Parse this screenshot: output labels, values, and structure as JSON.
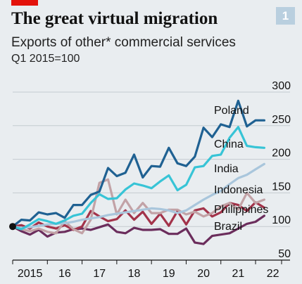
{
  "header": {
    "title": "The great virtual migration",
    "subtitle": "Exports of other* commercial services",
    "units": "Q1 2015=100",
    "chart_number": "1",
    "accent_color": "#e3120b"
  },
  "chart_data": {
    "type": "line",
    "title": "The great virtual migration",
    "subtitle": "Exports of other* commercial services",
    "ylabel": "Q1 2015=100",
    "ylim": [
      50,
      300
    ],
    "yticks": [
      50,
      100,
      150,
      200,
      250,
      300
    ],
    "xlim": [
      2015,
      2022.75
    ],
    "xticks": [
      "2015",
      "16",
      "17",
      "18",
      "19",
      "20",
      "21",
      "22"
    ],
    "grid": true,
    "legend": "labels at line ends, right",
    "base_marker": {
      "x": 2015,
      "y": 100
    },
    "series": [
      {
        "name": "Poland",
        "color": "#1f6192",
        "x": [
          2015,
          2015.25,
          2015.5,
          2015.75,
          2016,
          2016.25,
          2016.5,
          2016.75,
          2017,
          2017.25,
          2017.5,
          2017.75,
          2018,
          2018.25,
          2018.5,
          2018.75,
          2019,
          2019.25,
          2019.5,
          2019.75,
          2020,
          2020.25,
          2020.5,
          2020.75,
          2021,
          2021.25,
          2021.5,
          2021.75,
          2022,
          2022.25
        ],
        "values": [
          100,
          110,
          109,
          121,
          118,
          120,
          113,
          132,
          132,
          147,
          152,
          187,
          175,
          180,
          207,
          173,
          190,
          189,
          217,
          194,
          190,
          204,
          247,
          233,
          252,
          248,
          287,
          249,
          258,
          258
        ]
      },
      {
        "name": "China",
        "color": "#37c4d6",
        "x": [
          2015,
          2015.25,
          2015.5,
          2015.75,
          2016,
          2016.25,
          2016.5,
          2016.75,
          2017,
          2017.25,
          2017.5,
          2017.75,
          2018,
          2018.25,
          2018.5,
          2018.75,
          2019,
          2019.25,
          2019.5,
          2019.75,
          2020,
          2020.25,
          2020.5,
          2020.75,
          2021,
          2021.25,
          2021.5,
          2021.75,
          2022,
          2022.25
        ],
        "values": [
          100,
          96,
          103,
          111,
          108,
          104,
          109,
          116,
          119,
          135,
          148,
          141,
          142,
          155,
          164,
          161,
          157,
          167,
          176,
          154,
          162,
          188,
          190,
          205,
          207,
          232,
          248,
          220,
          218,
          217
        ]
      },
      {
        "name": "India",
        "color": "#a9c6dc",
        "x": [
          2015,
          2015.25,
          2015.5,
          2015.75,
          2016,
          2016.25,
          2016.5,
          2016.75,
          2017,
          2017.25,
          2017.5,
          2017.75,
          2018,
          2018.25,
          2018.5,
          2018.75,
          2019,
          2019.25,
          2019.5,
          2019.75,
          2020,
          2020.25,
          2020.5,
          2020.75,
          2021,
          2021.25,
          2021.5,
          2021.75,
          2022,
          2022.25
        ],
        "values": [
          100,
          98,
          99,
          101,
          103,
          104,
          105,
          107,
          110,
          112,
          114,
          117,
          119,
          121,
          123,
          125,
          127,
          126,
          124,
          120,
          124,
          132,
          140,
          147,
          153,
          163,
          172,
          177,
          185,
          193
        ]
      },
      {
        "name": "Indonesia",
        "color": "#c2a2a6",
        "x": [
          2015,
          2015.25,
          2015.5,
          2015.75,
          2016,
          2016.25,
          2016.5,
          2016.75,
          2017,
          2017.25,
          2017.5,
          2017.75,
          2018,
          2018.25,
          2018.5,
          2018.75,
          2019,
          2019.25,
          2019.5,
          2019.75,
          2020,
          2020.25,
          2020.5,
          2020.75,
          2021,
          2021.25,
          2021.5,
          2021.75,
          2022,
          2022.25
        ],
        "values": [
          100,
          96,
          93,
          97,
          92,
          90,
          108,
          96,
          90,
          110,
          165,
          170,
          118,
          140,
          120,
          135,
          120,
          120,
          125,
          125,
          118,
          122,
          115,
          120,
          130,
          135,
          125,
          150,
          135,
          140
        ]
      },
      {
        "name": "Philippines",
        "color": "#a3334a",
        "x": [
          2015,
          2015.25,
          2015.5,
          2015.75,
          2016,
          2016.25,
          2016.5,
          2016.75,
          2017,
          2017.25,
          2017.5,
          2017.75,
          2018,
          2018.25,
          2018.5,
          2018.75,
          2019,
          2019.25,
          2019.5,
          2019.75,
          2020,
          2020.25,
          2020.5,
          2020.75,
          2021,
          2021.25,
          2021.5,
          2021.75,
          2022,
          2022.25
        ],
        "values": [
          100,
          102,
          97,
          106,
          100,
          97,
          102,
          95,
          100,
          123,
          115,
          108,
          111,
          124,
          110,
          122,
          104,
          119,
          101,
          123,
          103,
          124,
          127,
          115,
          121,
          135,
          132,
          123,
          136,
          128
        ]
      },
      {
        "name": "Brazil",
        "color": "#6b2d5c",
        "x": [
          2015,
          2015.25,
          2015.5,
          2015.75,
          2016,
          2016.25,
          2016.5,
          2016.75,
          2017,
          2017.25,
          2017.5,
          2017.75,
          2018,
          2018.25,
          2018.5,
          2018.75,
          2019,
          2019.25,
          2019.5,
          2019.75,
          2020,
          2020.25,
          2020.5,
          2020.75,
          2021,
          2021.25,
          2021.5,
          2021.75,
          2022,
          2022.25
        ],
        "values": [
          100,
          93,
          88,
          95,
          85,
          91,
          92,
          96,
          97,
          95,
          99,
          103,
          92,
          90,
          98,
          95,
          95,
          96,
          89,
          89,
          97,
          76,
          74,
          86,
          88,
          90,
          97,
          104,
          107,
          116
        ]
      }
    ]
  }
}
